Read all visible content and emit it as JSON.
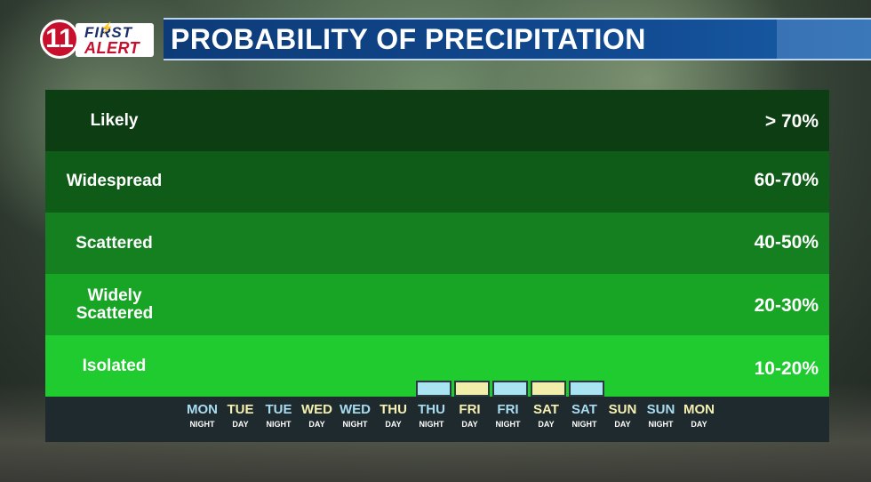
{
  "header": {
    "logo_number": "11",
    "logo_first": "FIRST",
    "logo_alert": "ALERT",
    "title": "PROBABILITY OF PRECIPITATION"
  },
  "colors": {
    "night_bar": "#a8e4f2",
    "day_bar": "#f0eea8",
    "night_label": "#a8dcf0",
    "day_label": "#f5f0b0"
  },
  "chart_data": {
    "type": "bar",
    "title": "PROBABILITY OF PRECIPITATION",
    "y_categories": [
      {
        "label": "Likely",
        "range": "> 70%"
      },
      {
        "label": "Widespread",
        "range": "60-70%"
      },
      {
        "label": "Scattered",
        "range": "40-50%"
      },
      {
        "label": "Widely Scattered",
        "range": "20-30%"
      },
      {
        "label": "Isolated",
        "range": "10-20%"
      }
    ],
    "periods": [
      {
        "day": "MON",
        "part": "NIGHT",
        "value": 0
      },
      {
        "day": "TUE",
        "part": "DAY",
        "value": 0
      },
      {
        "day": "TUE",
        "part": "NIGHT",
        "value": 0
      },
      {
        "day": "WED",
        "part": "DAY",
        "value": 0
      },
      {
        "day": "WED",
        "part": "NIGHT",
        "value": 0
      },
      {
        "day": "THU",
        "part": "DAY",
        "value": 0
      },
      {
        "day": "THU",
        "part": "NIGHT",
        "value": 10
      },
      {
        "day": "FRI",
        "part": "DAY",
        "value": 10
      },
      {
        "day": "FRI",
        "part": "NIGHT",
        "value": 10
      },
      {
        "day": "SAT",
        "part": "DAY",
        "value": 10
      },
      {
        "day": "SAT",
        "part": "NIGHT",
        "value": 10
      },
      {
        "day": "SUN",
        "part": "DAY",
        "value": 0
      },
      {
        "day": "SUN",
        "part": "NIGHT",
        "value": 0
      },
      {
        "day": "MON",
        "part": "DAY",
        "value": 0
      }
    ]
  }
}
